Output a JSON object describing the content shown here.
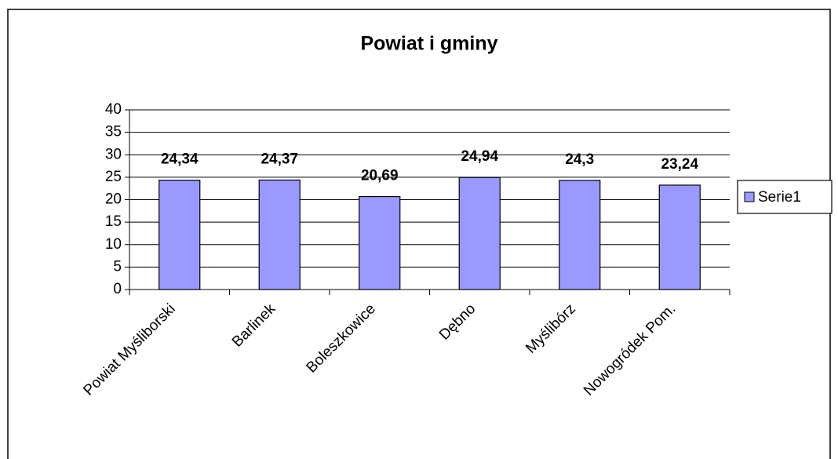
{
  "chart_data": {
    "type": "bar",
    "title": "Powiat i gminy",
    "categories": [
      "Powiat Myśliborski",
      "Barlinek",
      "Boleszkowice",
      "Dębno",
      "Myślibórz",
      "Nowogródek Pom."
    ],
    "series": [
      {
        "name": "Serie1",
        "color": "#9999ff",
        "values": [
          24.34,
          24.37,
          20.69,
          24.94,
          24.3,
          23.24
        ],
        "value_labels": [
          "24,34",
          "24,37",
          "20,69",
          "24,94",
          "24,3",
          "23,24"
        ]
      }
    ],
    "ylim": [
      0,
      40
    ],
    "yticks": [
      0,
      5,
      10,
      15,
      20,
      25,
      30,
      35,
      40
    ],
    "grid": true,
    "legend": "right"
  }
}
